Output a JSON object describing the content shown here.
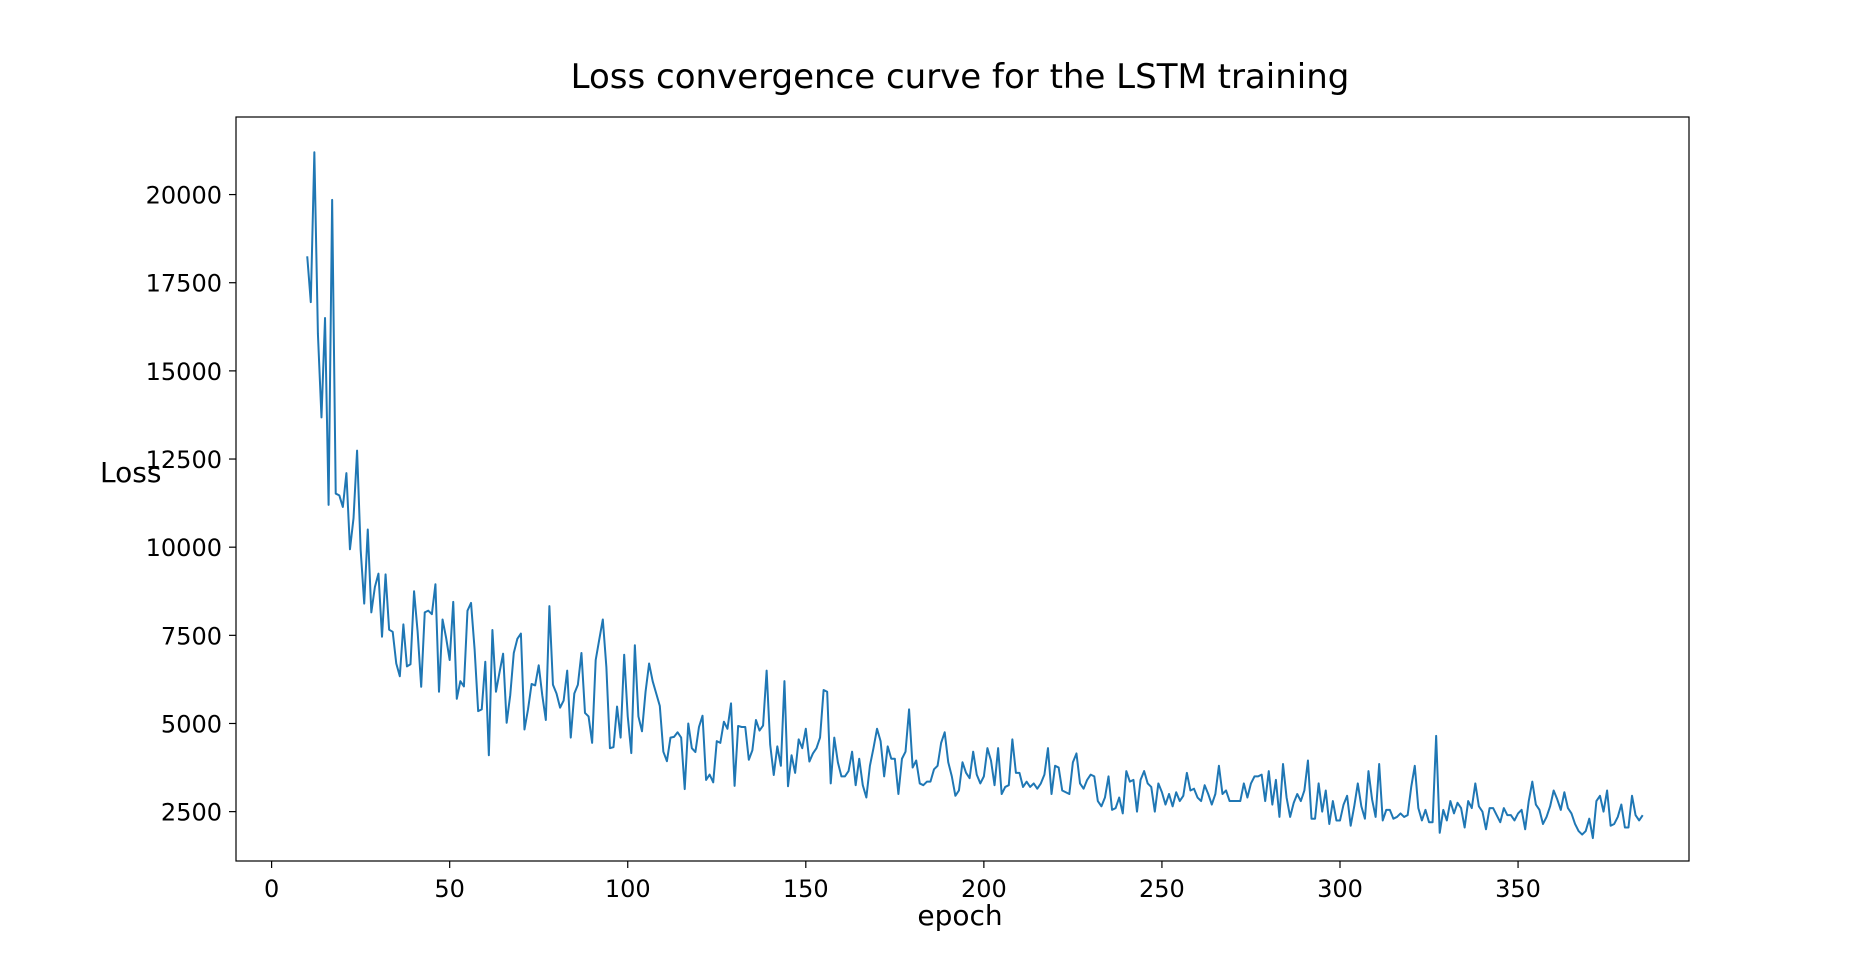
{
  "chart_data": {
    "type": "line",
    "title": "Loss convergence curve for the LSTM training",
    "xlabel": "epoch",
    "ylabel": "Loss",
    "xlim": [
      -10,
      398
    ],
    "ylim": [
      1100,
      22200
    ],
    "xticks": [
      0,
      50,
      100,
      150,
      200,
      250,
      300,
      350
    ],
    "yticks": [
      2500,
      5000,
      7500,
      10000,
      12500,
      15000,
      17500,
      20000
    ],
    "grid": false,
    "series": [
      {
        "color": "#1f77b4",
        "x_start": 10,
        "x_step": 1,
        "values": [
          18250,
          16950,
          21200,
          16050,
          13680,
          16500,
          11200,
          19850,
          11520,
          11470,
          11140,
          12100,
          9940,
          10820,
          12740,
          9930,
          8400,
          10500,
          8150,
          8870,
          9250,
          7460,
          9230,
          7660,
          7600,
          6700,
          6340,
          7810,
          6620,
          6680,
          8750,
          7600,
          6040,
          8150,
          8200,
          8100,
          8950,
          5900,
          7950,
          7430,
          6800,
          8450,
          5700,
          6200,
          6050,
          8200,
          8420,
          7100,
          5350,
          5400,
          6750,
          4100,
          7650,
          5900,
          6450,
          6980,
          5020,
          5800,
          7000,
          7400,
          7550,
          4830,
          5400,
          6120,
          6080,
          6650,
          5800,
          5100,
          8330,
          6100,
          5850,
          5450,
          5650,
          6500,
          4600,
          5850,
          6100,
          7000,
          5300,
          5200,
          4450,
          6800,
          7380,
          7950,
          6600,
          4300,
          4330,
          5480,
          4600,
          6950,
          5200,
          4160,
          7220,
          5200,
          4780,
          5900,
          6700,
          6200,
          5850,
          5500,
          4200,
          3930,
          4600,
          4620,
          4750,
          4600,
          3140,
          5000,
          4300,
          4190,
          4900,
          5220,
          3400,
          3550,
          3330,
          4500,
          4450,
          5050,
          4850,
          5570,
          3230,
          4930,
          4900,
          4900,
          3970,
          4240,
          5100,
          4800,
          4940,
          6500,
          4400,
          3540,
          4350,
          3800,
          6200,
          3220,
          4100,
          3600,
          4550,
          4300,
          4850,
          3920,
          4150,
          4300,
          4600,
          5950,
          5900,
          3300,
          4600,
          3900,
          3500,
          3500,
          3650,
          4200,
          3250,
          4000,
          3250,
          2900,
          3800,
          4300,
          4850,
          4500,
          3500,
          4350,
          4000,
          4000,
          3000,
          4000,
          4200,
          5400,
          3750,
          3950,
          3300,
          3250,
          3350,
          3350,
          3700,
          3800,
          4450,
          4750,
          3900,
          3500,
          2950,
          3100,
          3900,
          3600,
          3450,
          4200,
          3550,
          3300,
          3500,
          4300,
          3950,
          3250,
          4300,
          3000,
          3200,
          3250,
          4550,
          3600,
          3600,
          3200,
          3350,
          3200,
          3300,
          3150,
          3300,
          3550,
          4300,
          3000,
          3800,
          3750,
          3100,
          3050,
          3000,
          3900,
          4150,
          3300,
          3150,
          3400,
          3550,
          3500,
          2800,
          2650,
          2900,
          3500,
          2550,
          2600,
          2900,
          2450,
          3650,
          3350,
          3400,
          2500,
          3400,
          3650,
          3300,
          3200,
          2500,
          3300,
          3050,
          2700,
          3000,
          2650,
          3050,
          2800,
          2950,
          3600,
          3100,
          3150,
          2900,
          2800,
          3250,
          3000,
          2700,
          3000,
          3800,
          3000,
          3100,
          2800,
          2800,
          2800,
          2800,
          3300,
          2900,
          3300,
          3500,
          3500,
          3550,
          2800,
          3650,
          2700,
          3400,
          2350,
          3850,
          2900,
          2350,
          2750,
          3000,
          2800,
          3100,
          3950,
          2300,
          2300,
          3300,
          2500,
          3100,
          2150,
          2800,
          2250,
          2250,
          2700,
          2950,
          2100,
          2650,
          3300,
          2650,
          2300,
          3650,
          2850,
          2350,
          3850,
          2250,
          2550,
          2550,
          2300,
          2350,
          2450,
          2350,
          2400,
          3200,
          3800,
          2600,
          2250,
          2550,
          2200,
          2200,
          4650,
          1900,
          2550,
          2250,
          2800,
          2450,
          2750,
          2600,
          2050,
          2800,
          2600,
          3300,
          2650,
          2500,
          2000,
          2600,
          2600,
          2400,
          2200,
          2600,
          2400,
          2400,
          2250,
          2450,
          2550,
          2000,
          2800,
          3350,
          2700,
          2550,
          2150,
          2350,
          2650,
          3100,
          2850,
          2550,
          3050,
          2600,
          2450,
          2150,
          1950,
          1850,
          1950,
          2300,
          1750,
          2800,
          2950,
          2500,
          3100,
          2100,
          2150,
          2350,
          2700,
          2050,
          2050,
          2950,
          2400,
          2250,
          2400
        ]
      }
    ]
  }
}
